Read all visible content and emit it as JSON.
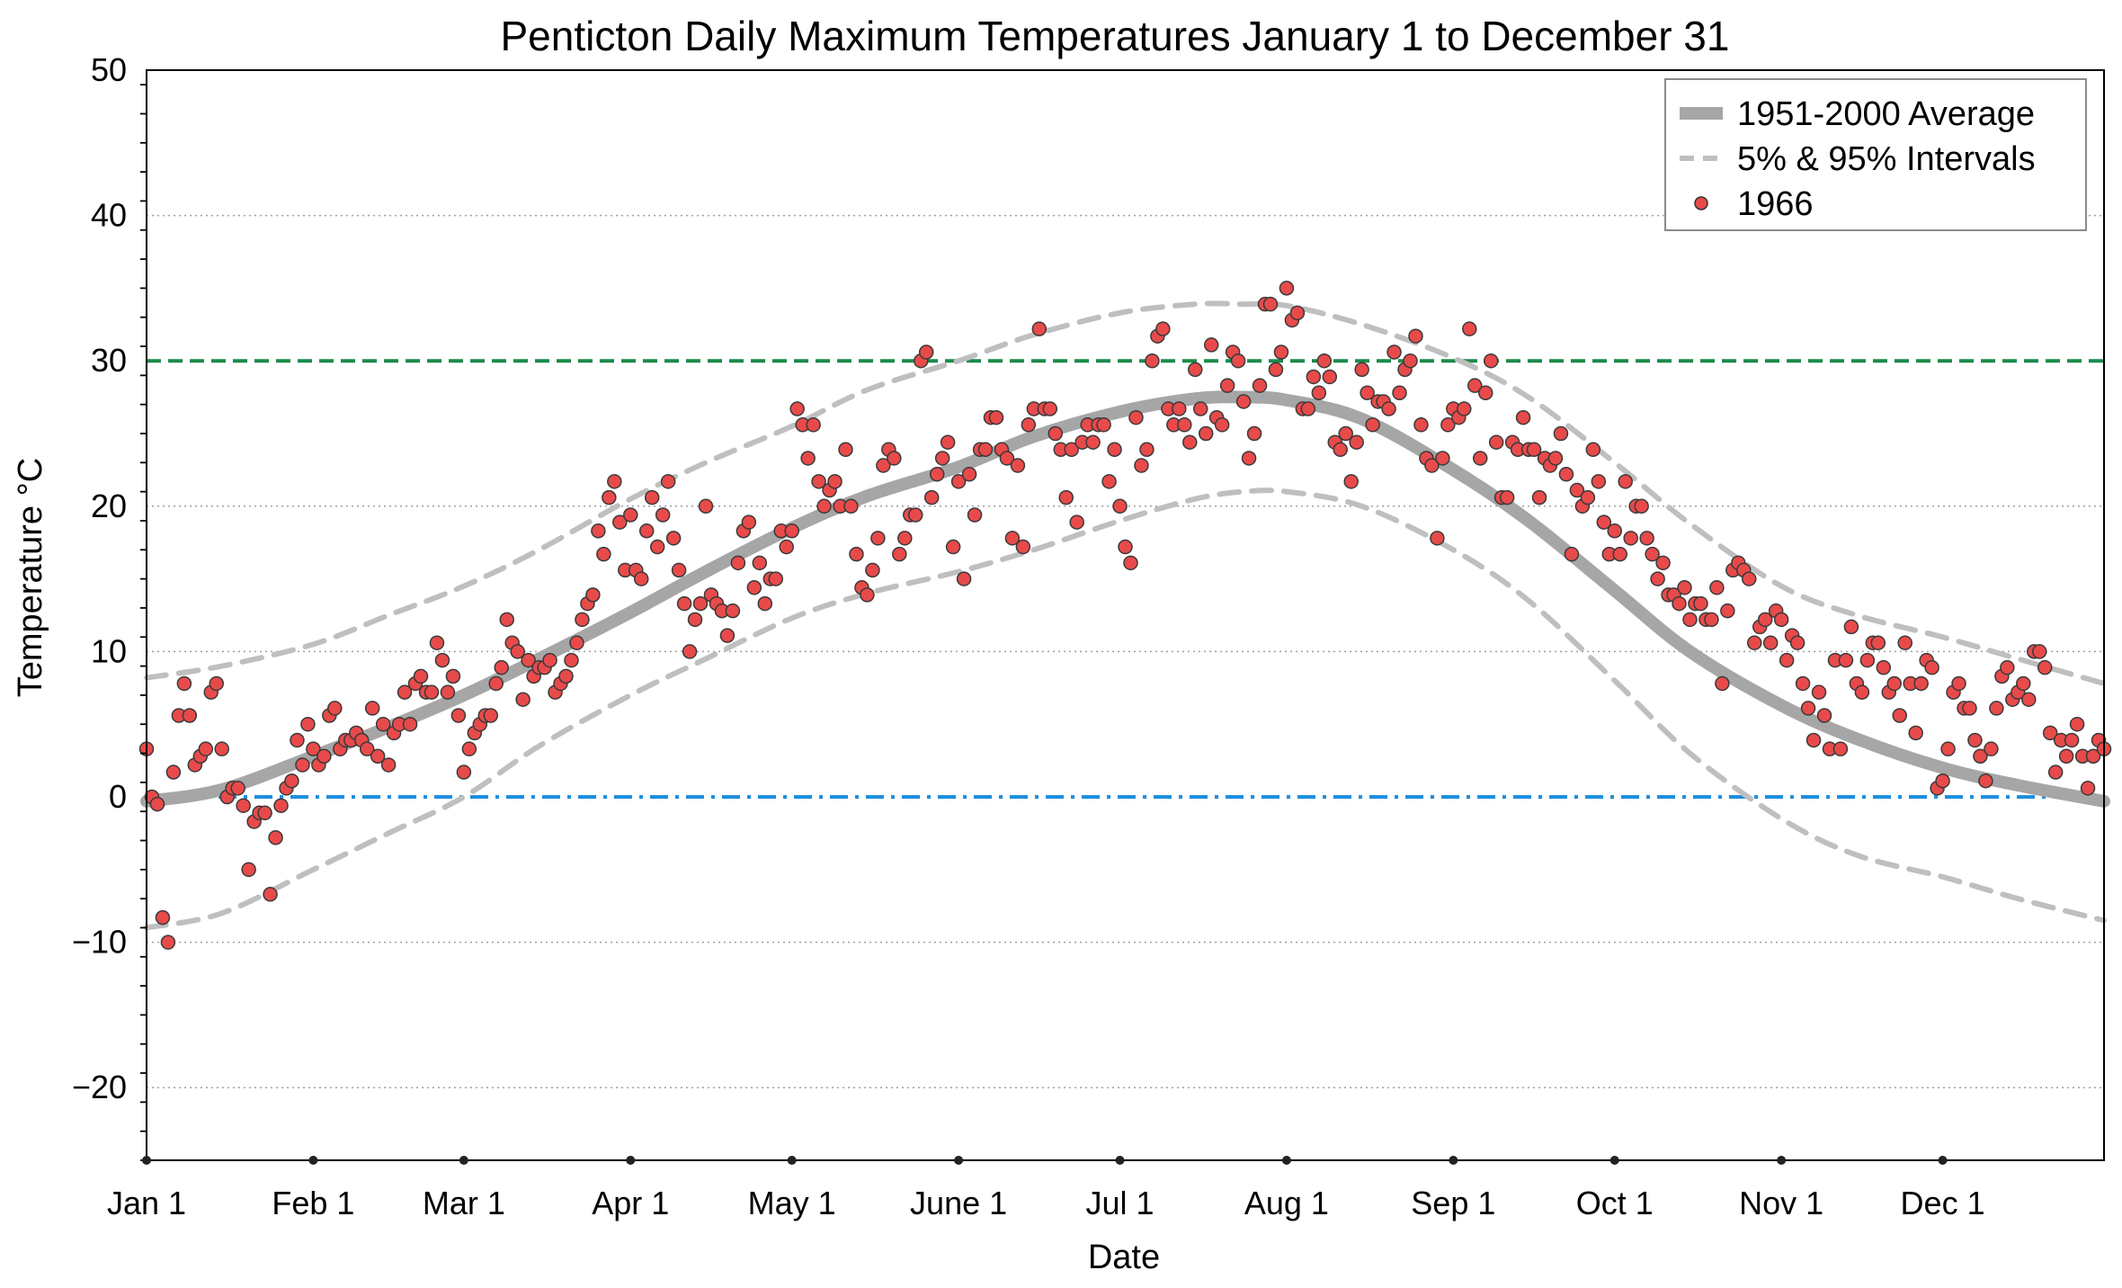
{
  "chart_data": {
    "type": "line+scatter",
    "title": "Penticton Daily Maximum Temperatures January 1 to December 31",
    "xlabel": "Date",
    "ylabel": "Temperature °C",
    "xlim": [
      1,
      365
    ],
    "ylim": [
      -25,
      50
    ],
    "y_ticks": [
      -20,
      -10,
      0,
      10,
      20,
      30,
      40,
      50
    ],
    "y_tick_labels": [
      "−20",
      "−10",
      "0",
      "10",
      "20",
      "30",
      "40",
      "50"
    ],
    "x_ticks": [
      1,
      32,
      60,
      91,
      121,
      152,
      182,
      213,
      244,
      274,
      305,
      335
    ],
    "x_tick_labels": [
      "Jan 1",
      "Feb 1",
      "Mar 1",
      "Apr 1",
      "May 1",
      "June 1",
      "Jul 1",
      "Aug 1",
      "Sep 1",
      "Oct 1",
      "Nov 1",
      "Dec 1"
    ],
    "grid": "horizontal dotted",
    "legend_position": "top-right",
    "legend": [
      "1951-2000 Average",
      "5% & 95% Intervals",
      "1966"
    ],
    "reference_lines": [
      {
        "y": 30,
        "color": "#1a8a4a",
        "style": "dashed"
      },
      {
        "y": 0,
        "color": "#1e8fe0",
        "style": "dash-dot"
      }
    ],
    "series": [
      {
        "name": "1951-2000 Average",
        "style": "thick solid gray",
        "color": "#a6a6a6",
        "x": [
          1,
          15,
          32,
          46,
          60,
          74,
          91,
          105,
          121,
          135,
          152,
          166,
          182,
          196,
          205,
          213,
          227,
          244,
          258,
          274,
          288,
          305,
          319,
          335,
          349,
          365
        ],
        "y": [
          -0.3,
          0.5,
          2.8,
          4.8,
          7.0,
          9.5,
          12.7,
          15.5,
          18.5,
          20.7,
          22.7,
          24.8,
          26.5,
          27.4,
          27.5,
          27.3,
          26.0,
          22.5,
          19.0,
          14.2,
          10.0,
          6.3,
          4.0,
          2.0,
          0.8,
          -0.3
        ]
      },
      {
        "name": "95% Interval",
        "style": "dashed light gray",
        "color": "#bfbfbf",
        "x": [
          1,
          15,
          32,
          46,
          60,
          74,
          91,
          105,
          121,
          135,
          152,
          166,
          182,
          196,
          205,
          213,
          227,
          244,
          258,
          274,
          288,
          305,
          319,
          335,
          349,
          365
        ],
        "y": [
          8.2,
          9.0,
          10.5,
          12.5,
          14.5,
          17.0,
          20.5,
          23.0,
          25.5,
          28.0,
          30.0,
          31.8,
          33.3,
          33.9,
          33.9,
          33.8,
          32.5,
          30.2,
          27.5,
          23.0,
          18.8,
          14.5,
          12.5,
          11.0,
          9.5,
          7.8
        ]
      },
      {
        "name": "5% Interval",
        "style": "dashed light gray",
        "color": "#bfbfbf",
        "x": [
          1,
          15,
          32,
          46,
          60,
          74,
          91,
          105,
          121,
          135,
          152,
          166,
          182,
          196,
          205,
          213,
          227,
          244,
          258,
          274,
          288,
          305,
          319,
          335,
          349,
          365
        ],
        "y": [
          -9.0,
          -8.0,
          -5.0,
          -2.5,
          0.0,
          3.5,
          7.0,
          9.5,
          12.3,
          14.0,
          15.5,
          17.0,
          19.0,
          20.5,
          21.0,
          21.0,
          20.0,
          17.0,
          13.5,
          8.0,
          3.0,
          -1.5,
          -4.0,
          -5.5,
          -7.0,
          -8.5
        ]
      },
      {
        "name": "1966",
        "style": "scatter red circles",
        "color": "#e84a4a",
        "x": [
          1,
          2,
          3,
          4,
          5,
          6,
          7,
          8,
          9,
          10,
          11,
          12,
          13,
          14,
          15,
          16,
          17,
          18,
          19,
          20,
          21,
          22,
          23,
          24,
          25,
          26,
          27,
          28,
          29,
          30,
          31,
          32,
          33,
          34,
          35,
          36,
          37,
          38,
          39,
          40,
          41,
          42,
          43,
          44,
          45,
          46,
          47,
          48,
          49,
          50,
          51,
          52,
          53,
          54,
          55,
          56,
          57,
          58,
          59,
          60,
          61,
          62,
          63,
          64,
          65,
          66,
          67,
          68,
          69,
          70,
          71,
          72,
          73,
          74,
          75,
          76,
          77,
          78,
          79,
          80,
          81,
          82,
          83,
          84,
          85,
          86,
          87,
          88,
          89,
          90,
          91,
          92,
          93,
          94,
          95,
          96,
          97,
          98,
          99,
          100,
          101,
          102,
          103,
          104,
          105,
          106,
          107,
          108,
          109,
          110,
          111,
          112,
          113,
          114,
          115,
          116,
          117,
          118,
          119,
          120,
          121,
          122,
          123,
          124,
          125,
          126,
          127,
          128,
          129,
          130,
          131,
          132,
          133,
          134,
          135,
          136,
          137,
          138,
          139,
          140,
          141,
          142,
          143,
          144,
          145,
          146,
          147,
          148,
          149,
          150,
          151,
          152,
          153,
          154,
          155,
          156,
          157,
          158,
          159,
          160,
          161,
          162,
          163,
          164,
          165,
          166,
          167,
          168,
          169,
          170,
          171,
          172,
          173,
          174,
          175,
          176,
          177,
          178,
          179,
          180,
          181,
          182,
          183,
          184,
          185,
          186,
          187,
          188,
          189,
          190,
          191,
          192,
          193,
          194,
          195,
          196,
          197,
          198,
          199,
          200,
          201,
          202,
          203,
          204,
          205,
          206,
          207,
          208,
          209,
          210,
          211,
          212,
          213,
          214,
          215,
          216,
          217,
          218,
          219,
          220,
          221,
          222,
          223,
          224,
          225,
          226,
          227,
          228,
          229,
          230,
          231,
          232,
          233,
          234,
          235,
          236,
          237,
          238,
          239,
          240,
          241,
          242,
          243,
          244,
          245,
          246,
          247,
          248,
          249,
          250,
          251,
          252,
          253,
          254,
          255,
          256,
          257,
          258,
          259,
          260,
          261,
          262,
          263,
          264,
          265,
          266,
          267,
          268,
          269,
          270,
          271,
          272,
          273,
          274,
          275,
          276,
          277,
          278,
          279,
          280,
          281,
          282,
          283,
          284,
          285,
          286,
          287,
          288,
          289,
          290,
          291,
          292,
          293,
          294,
          295,
          296,
          297,
          298,
          299,
          300,
          301,
          302,
          303,
          304,
          305,
          306,
          307,
          308,
          309,
          310,
          311,
          312,
          313,
          314,
          315,
          316,
          317,
          318,
          319,
          320,
          321,
          322,
          323,
          324,
          325,
          326,
          327,
          328,
          329,
          330,
          331,
          332,
          333,
          334,
          335,
          336,
          337,
          338,
          339,
          340,
          341,
          342,
          343,
          344,
          345,
          346,
          347,
          348,
          349,
          350,
          351,
          352,
          353,
          354,
          355,
          356,
          357,
          358,
          359,
          360,
          361,
          362,
          363,
          364,
          365
        ],
        "y": [
          3.3,
          0.0,
          -0.5,
          -8.3,
          -10.0,
          1.7,
          5.6,
          7.8,
          5.6,
          2.2,
          2.8,
          3.3,
          7.2,
          7.8,
          3.3,
          0.0,
          0.6,
          0.6,
          -0.6,
          -5.0,
          -1.7,
          -1.1,
          -1.1,
          -6.7,
          -2.8,
          -0.6,
          0.6,
          1.1,
          3.9,
          2.2,
          5.0,
          3.3,
          2.2,
          2.8,
          5.6,
          6.1,
          3.3,
          3.9,
          3.9,
          4.4,
          3.9,
          3.3,
          6.1,
          2.8,
          5.0,
          2.2,
          4.4,
          5.0,
          7.2,
          5.0,
          7.8,
          8.3,
          7.2,
          7.2,
          10.6,
          9.4,
          7.2,
          8.3,
          5.6,
          1.7,
          3.3,
          4.4,
          5.0,
          5.6,
          5.6,
          7.8,
          8.9,
          12.2,
          10.6,
          10.0,
          6.7,
          9.4,
          8.3,
          8.9,
          8.9,
          9.4,
          7.2,
          7.8,
          8.3,
          9.4,
          10.6,
          12.2,
          13.3,
          13.9,
          18.3,
          16.7,
          20.6,
          21.7,
          18.9,
          15.6,
          19.4,
          15.6,
          15.0,
          18.3,
          20.6,
          17.2,
          19.4,
          21.7,
          17.8,
          15.6,
          13.3,
          10.0,
          12.2,
          13.3,
          20.0,
          13.9,
          13.3,
          12.8,
          11.1,
          12.8,
          16.1,
          18.3,
          18.9,
          14.4,
          16.1,
          13.3,
          15.0,
          15.0,
          18.3,
          17.2,
          18.3,
          26.7,
          25.6,
          23.3,
          25.6,
          21.7,
          20.0,
          21.1,
          21.7,
          20.0,
          23.9,
          20.0,
          16.7,
          14.4,
          13.9,
          15.6,
          17.8,
          22.8,
          23.9,
          23.3,
          16.7,
          17.8,
          19.4,
          19.4,
          30.0,
          30.6,
          20.6,
          22.2,
          23.3,
          24.4,
          17.2,
          21.7,
          15.0,
          22.2,
          19.4,
          23.9,
          23.9,
          26.1,
          26.1,
          23.9,
          23.3,
          17.8,
          22.8,
          17.2,
          25.6,
          26.7,
          32.2,
          26.7,
          26.7,
          25.0,
          23.9,
          20.6,
          23.9,
          18.9,
          24.4,
          25.6,
          24.4,
          25.6,
          25.6,
          21.7,
          23.9,
          20.0,
          17.2,
          16.1,
          26.1,
          22.8,
          23.9,
          30.0,
          31.7,
          32.2,
          26.7,
          25.6,
          26.7,
          25.6,
          24.4,
          29.4,
          26.7,
          25.0,
          31.1,
          26.1,
          25.6,
          28.3,
          30.6,
          30.0,
          27.2,
          23.3,
          25.0,
          28.3,
          33.9,
          33.9,
          29.4,
          30.6,
          35.0,
          32.8,
          33.3,
          26.7,
          26.7,
          28.9,
          27.8,
          30.0,
          28.9,
          24.4,
          23.9,
          25.0,
          21.7,
          24.4,
          29.4,
          27.8,
          25.6,
          27.2,
          27.2,
          26.7,
          30.6,
          27.8,
          29.4,
          30.0,
          31.7,
          25.6,
          23.3,
          22.8,
          17.8,
          23.3,
          25.6,
          26.7,
          26.1,
          26.7,
          32.2,
          28.3,
          23.3,
          27.8,
          30.0,
          24.4,
          20.6,
          20.6,
          24.4,
          23.9,
          26.1,
          23.9,
          23.9,
          20.6,
          23.3,
          22.8,
          23.3,
          25.0,
          22.2,
          16.7,
          21.1,
          20.0,
          20.6,
          23.9,
          21.7,
          18.9,
          16.7,
          18.3,
          16.7,
          21.7,
          17.8,
          20.0,
          20.0,
          17.8,
          16.7,
          15.0,
          16.1,
          13.9,
          13.9,
          13.3,
          14.4,
          12.2,
          13.3,
          13.3,
          12.2,
          12.2,
          14.4,
          7.8,
          12.8,
          15.6,
          16.1,
          15.6,
          15.0,
          10.6,
          11.7,
          12.2,
          10.6,
          12.8,
          12.2,
          9.4,
          11.1,
          10.6,
          7.8,
          6.1,
          3.9,
          7.2,
          5.6,
          3.3,
          9.4,
          3.3,
          9.4,
          11.7,
          7.8,
          7.2,
          9.4,
          10.6,
          10.6,
          8.9,
          7.2,
          7.8,
          5.6,
          10.6,
          7.8,
          4.4,
          7.8,
          9.4,
          8.9,
          0.6,
          1.1,
          3.3,
          7.2,
          7.8,
          6.1,
          6.1,
          3.9,
          2.8,
          1.1,
          3.3,
          6.1,
          8.3,
          8.9,
          6.7,
          7.2,
          7.8,
          6.7,
          10.0,
          10.0,
          8.9,
          4.4,
          1.7,
          3.9,
          2.8,
          3.9,
          5.0,
          2.8,
          0.6,
          2.8,
          3.9,
          3.3
        ]
      }
    ]
  }
}
